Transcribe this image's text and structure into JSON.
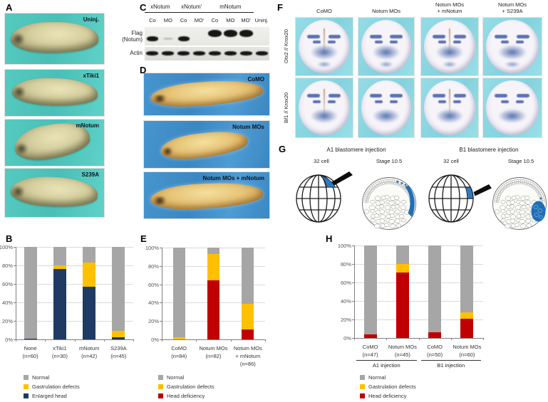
{
  "panels": {
    "a": {
      "letter": "A",
      "images": [
        {
          "label": "Uninj."
        },
        {
          "label": "xTiki1"
        },
        {
          "label": "mNotum"
        },
        {
          "label": "S239A"
        }
      ]
    },
    "b": {
      "letter": "B"
    },
    "c": {
      "letter": "C",
      "row1_label_line1": "Flag",
      "row1_label_line2": "(Notum)",
      "row2_label": "Actin",
      "groups": [
        {
          "name": "xNotum",
          "lanes": [
            0,
            1
          ]
        },
        {
          "name": "xNotum'",
          "lanes": [
            2,
            3
          ]
        },
        {
          "name": "mNotum",
          "lanes": [
            4,
            6
          ]
        }
      ],
      "lanes": [
        {
          "label": "Co",
          "flag_band": "strong",
          "band_pos": "low"
        },
        {
          "label": "MO",
          "flag_band": "faint",
          "band_pos": "low"
        },
        {
          "label": "Co",
          "flag_band": "strong",
          "band_pos": "low"
        },
        {
          "label": "MO'",
          "flag_band": "none",
          "band_pos": "low"
        },
        {
          "label": "Co",
          "flag_band": "strong",
          "band_pos": "high"
        },
        {
          "label": "MO",
          "flag_band": "strong",
          "band_pos": "high"
        },
        {
          "label": "MO'",
          "flag_band": "strong",
          "band_pos": "high"
        },
        {
          "label": "Uninj.",
          "flag_band": "none",
          "band_pos": "low"
        }
      ],
      "actin_bands": [
        1,
        1,
        1,
        1,
        1,
        1,
        1,
        1
      ]
    },
    "d": {
      "letter": "D",
      "images": [
        {
          "label": "CoMO"
        },
        {
          "label": "Notum MOs"
        },
        {
          "label": "Notum MOs + mNotum"
        }
      ]
    },
    "e": {
      "letter": "E"
    },
    "f": {
      "letter": "F",
      "column_headers": [
        [
          "CoMO"
        ],
        [
          "Notum MOs"
        ],
        [
          "Notum MOs",
          "+ mNotum"
        ],
        [
          "Notum MOs",
          "+ S239A"
        ]
      ],
      "row_labels": [
        "Otx2 // Krox20",
        "Bf1 // Krox20"
      ]
    },
    "g": {
      "letter": "G",
      "sections": [
        {
          "title": "A1 blastomere injection",
          "stage_left": "32 cell",
          "stage_right": "Stage 10.5",
          "highlight": "A1"
        },
        {
          "title": "B1 blastomere injection",
          "stage_left": "32 cell",
          "stage_right": "Stage 10.5",
          "highlight": "B1"
        }
      ]
    },
    "h": {
      "letter": "H"
    }
  },
  "chart_data": [
    {
      "id": "B",
      "type": "bar",
      "stacked": true,
      "percent_axis": true,
      "ylim": [
        0,
        100
      ],
      "yticks": [
        "0%",
        "20%",
        "40%",
        "60%",
        "80%",
        "100%"
      ],
      "grid": true,
      "categories": [
        [
          "None",
          "(n=60)"
        ],
        [
          "xTiki1",
          "(n=30)"
        ],
        [
          "mNotum",
          "(n=42)"
        ],
        [
          "S239A",
          "(n=45)"
        ]
      ],
      "series": [
        {
          "name": "Enlarged head",
          "color": "#1f3a63",
          "values": [
            1,
            76,
            57,
            2
          ]
        },
        {
          "name": "Gastrulation defects",
          "color": "#ffc000",
          "values": [
            0,
            4,
            26,
            7
          ]
        },
        {
          "name": "Normal",
          "color": "#a6a6a6",
          "values": [
            99,
            20,
            17,
            91
          ]
        }
      ],
      "legend": [
        {
          "label": "Normal",
          "color": "#a6a6a6"
        },
        {
          "label": "Gastrulation defects",
          "color": "#ffc000"
        },
        {
          "label": "Enlarged head",
          "color": "#1f3a63"
        }
      ],
      "legend_position": "below"
    },
    {
      "id": "E",
      "type": "bar",
      "stacked": true,
      "percent_axis": true,
      "ylim": [
        0,
        100
      ],
      "yticks": [
        "0%",
        "20%",
        "40%",
        "60%",
        "80%",
        "100%"
      ],
      "grid": true,
      "categories": [
        [
          "CoMO",
          "(n=84)"
        ],
        [
          "Notum MOs",
          "(n=82)"
        ],
        [
          "Notum MOs",
          "+ mNotum",
          "(n=86)"
        ]
      ],
      "series": [
        {
          "name": "Head deficiency",
          "color": "#c00000",
          "values": [
            0,
            64,
            11
          ]
        },
        {
          "name": "Gastrulation defects",
          "color": "#ffc000",
          "values": [
            2,
            29,
            28
          ]
        },
        {
          "name": "Normal",
          "color": "#a6a6a6",
          "values": [
            98,
            7,
            61
          ]
        }
      ],
      "legend": [
        {
          "label": "Normal",
          "color": "#a6a6a6"
        },
        {
          "label": "Gastrulation defects",
          "color": "#ffc000"
        },
        {
          "label": "Head deficiency",
          "color": "#c00000"
        }
      ],
      "legend_position": "below"
    },
    {
      "id": "H",
      "type": "bar",
      "stacked": true,
      "percent_axis": true,
      "ylim": [
        0,
        100
      ],
      "yticks": [
        "0%",
        "20%",
        "40%",
        "60%",
        "80%",
        "100%"
      ],
      "grid": true,
      "categories": [
        [
          "CoMO",
          "(n=47)"
        ],
        [
          "Notum MOs",
          "(n=45)"
        ],
        [
          "CoMO",
          "(n=50)"
        ],
        [
          "Notum MOs",
          "(n=60)"
        ]
      ],
      "series": [
        {
          "name": "Head deficiency",
          "color": "#c00000",
          "values": [
            4,
            71,
            6,
            21
          ]
        },
        {
          "name": "Gastrulation defects",
          "color": "#ffc000",
          "values": [
            0,
            9,
            0,
            7
          ]
        },
        {
          "name": "Normal",
          "color": "#a6a6a6",
          "values": [
            96,
            20,
            94,
            72
          ]
        }
      ],
      "groups": [
        {
          "label": "A1 injection",
          "from": 0,
          "to": 1
        },
        {
          "label": "B1 injection",
          "from": 2,
          "to": 3
        }
      ],
      "legend": [
        {
          "label": "Normal",
          "color": "#a6a6a6"
        },
        {
          "label": "Gastrulation defects",
          "color": "#ffc000"
        },
        {
          "label": "Head deficiency",
          "color": "#c00000"
        }
      ],
      "legend_position": "below"
    }
  ]
}
